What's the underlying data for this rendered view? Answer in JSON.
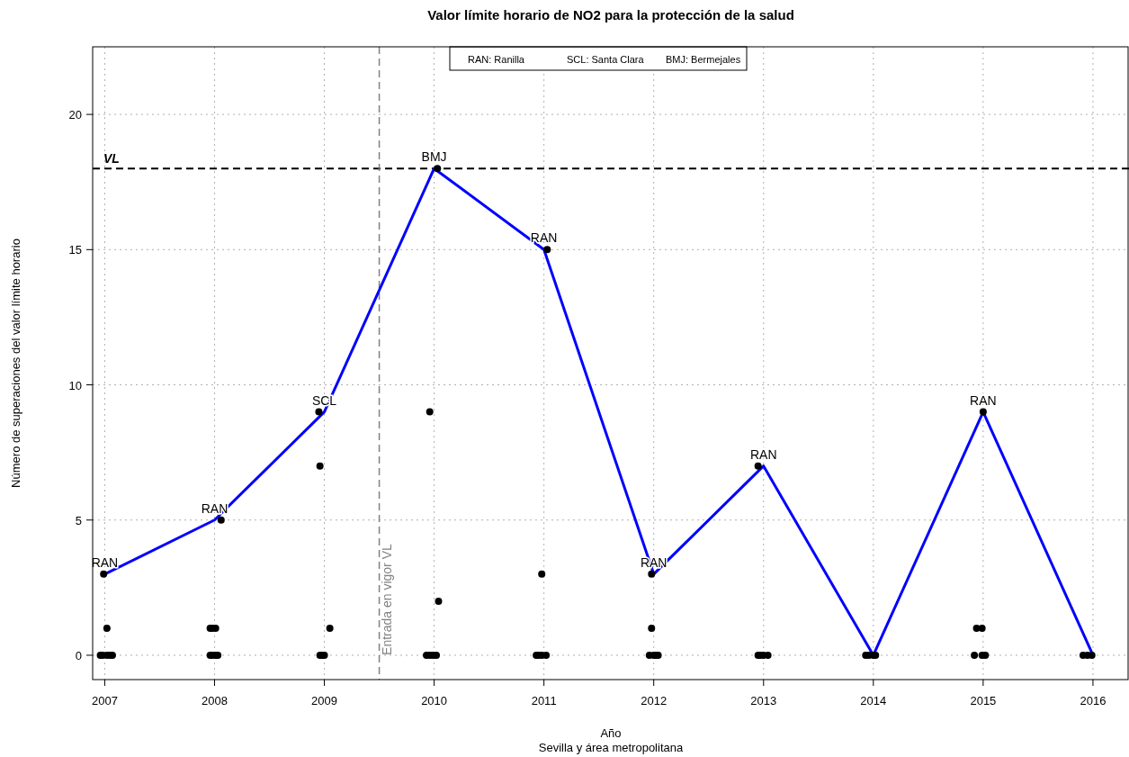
{
  "chart_data": {
    "type": "line",
    "title": "Valor límite horario de NO2 para la protección de la salud",
    "xlabel": "Año",
    "ylabel": "Número de superaciones del valor límite horario",
    "xlim": [
      2006.89,
      2016.32
    ],
    "ylim": [
      -0.9,
      22.5
    ],
    "xticks": [
      2007,
      2008,
      2009,
      2010,
      2011,
      2012,
      2013,
      2014,
      2015,
      2016
    ],
    "yticks": [
      0,
      5,
      10,
      15,
      20
    ],
    "grid": true,
    "series": [
      {
        "color": "#0000ff",
        "x": [
          2007,
          2008,
          2009,
          2010,
          2011,
          2012,
          2013,
          2014,
          2015,
          2016
        ],
        "values": [
          3,
          5,
          9,
          18,
          15,
          3,
          7,
          0,
          9,
          0
        ],
        "marker": "none",
        "line_style": "solid"
      },
      {
        "type": "scatter",
        "color": "#000000",
        "marker": "circle",
        "x": [
          2006.99,
          2007.02,
          2006.96,
          2006.98,
          2007.02,
          2007.05,
          2007.07,
          2007.96,
          2007.98,
          2008.01,
          2007.96,
          2007.98,
          2008.01,
          2008.03,
          2008.06,
          2008.95,
          2008.96,
          2009.05,
          2008.96,
          2008.98,
          2009.0,
          2010.03,
          2009.96,
          2010.04,
          2009.93,
          2009.96,
          2009.99,
          2010.02,
          2011.03,
          2010.98,
          2010.93,
          2010.95,
          2010.98,
          2011.02,
          2011.98,
          2011.98,
          2011.96,
          2012.0,
          2012.02,
          2012.04,
          2012.95,
          2012.95,
          2012.97,
          2013.0,
          2013.04,
          2013.93,
          2013.96,
          2014.0,
          2014.02,
          2014.94,
          2014.99,
          2015.0,
          2014.92,
          2014.99,
          2015.02,
          2015.91,
          2015.95,
          2015.99
        ],
        "values": [
          3,
          1,
          0,
          0,
          0,
          0,
          0,
          1,
          1,
          1,
          0,
          0,
          0,
          0,
          5,
          9,
          7,
          1,
          0,
          0,
          0,
          18,
          9,
          2,
          0,
          0,
          0,
          0,
          15,
          3,
          0,
          0,
          0,
          0,
          3,
          1,
          0,
          0,
          0,
          0,
          7,
          0,
          0,
          0,
          0,
          0,
          0,
          0,
          0,
          1,
          1,
          9,
          0,
          0,
          0,
          0,
          0,
          0
        ]
      }
    ],
    "ref_lines": [
      {
        "axis": "y",
        "value": 18,
        "label": "VL",
        "color": "#000000",
        "line_style": "dashed"
      },
      {
        "axis": "x",
        "value": 2009.5,
        "label": "Entrada en vigor VL",
        "color": "#808080",
        "line_style": "dashed"
      }
    ],
    "annotations": [
      {
        "text": "RAN",
        "x": 2007,
        "y": 3
      },
      {
        "text": "RAN",
        "x": 2008,
        "y": 5
      },
      {
        "text": "SCL",
        "x": 2009,
        "y": 9
      },
      {
        "text": "BMJ",
        "x": 2010,
        "y": 18
      },
      {
        "text": "RAN",
        "x": 2011,
        "y": 15
      },
      {
        "text": "RAN",
        "x": 2012,
        "y": 3
      },
      {
        "text": "RAN",
        "x": 2013,
        "y": 7
      },
      {
        "text": "RAN",
        "x": 2015,
        "y": 9
      },
      "RAN: Ranilla",
      "SCL: Santa Clara",
      "BMJ: Bermejales",
      "Sevilla y área metropolitana"
    ]
  }
}
